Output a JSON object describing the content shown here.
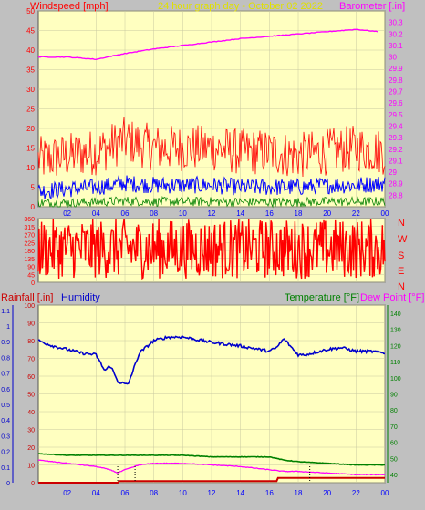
{
  "header": {
    "left_label": "Windspeed [mph]",
    "center_label": "24 hour graph day - October 02 2022",
    "right_label": "Barometer [.in]"
  },
  "colors": {
    "background": "#c0c0c0",
    "plot_bg": "#ffffc0",
    "wind_gust": "#ff0000",
    "wind_avg": "#0000ff",
    "wind_low": "#008000",
    "barometer": "#ff00ff",
    "direction": "#ff0000",
    "humidity": "#0000cc",
    "temperature": "#008000",
    "dewpoint": "#ff00ff",
    "rainfall": "#cc0000",
    "left_label": "#ff0000",
    "center_label": "#e0e000"
  },
  "direction_labels": [
    "N",
    "W",
    "S",
    "E",
    "N"
  ],
  "bottom_header": {
    "rain_label": "Rainfall [.in]",
    "humidity_label": "Humidity",
    "temp_label": "Temperature [°F]",
    "dew_label": "Dew Point [°F]"
  },
  "chart_data": [
    {
      "type": "line",
      "name": "wind-barometer",
      "x_ticks": [
        "02",
        "04",
        "06",
        "08",
        "10",
        "12",
        "14",
        "16",
        "18",
        "20",
        "22",
        "00"
      ],
      "left_axis": {
        "label": "Windspeed [mph]",
        "ylim": [
          0,
          50
        ],
        "ticks": [
          0,
          5,
          10,
          15,
          20,
          25,
          30,
          35,
          40,
          45,
          50
        ]
      },
      "right_axis": {
        "label": "Barometer [.in]",
        "ylim": [
          28.7,
          30.4
        ],
        "ticks": [
          "28.8",
          "28.9",
          "29",
          "29.1",
          "29.2",
          "29.3",
          "29.4",
          "29.5",
          "29.6",
          "29.7",
          "29.8",
          "29.9",
          "30",
          "30.1",
          "30.2",
          "30.3"
        ]
      },
      "series": [
        {
          "name": "Barometer [.in]",
          "hours": [
            0,
            2,
            4,
            6,
            8,
            10,
            12,
            14,
            16,
            18,
            20,
            22,
            23.5
          ],
          "values": [
            30.0,
            30.0,
            29.98,
            30.03,
            30.07,
            30.1,
            30.13,
            30.16,
            30.18,
            30.2,
            30.22,
            30.24,
            30.22
          ]
        },
        {
          "hours": [
            0,
            2,
            4,
            6,
            8,
            10,
            12,
            14,
            16,
            18,
            20,
            22,
            24
          ],
          "values": [
            12,
            13,
            14,
            17,
            15,
            15,
            15,
            14,
            14,
            13,
            14,
            15,
            14
          ]
        },
        {
          "hours": [
            0,
            2,
            4,
            6,
            8,
            10,
            12,
            14,
            16,
            18,
            20,
            22,
            24
          ],
          "values": [
            4,
            4.5,
            5,
            6,
            5.5,
            5.5,
            5.5,
            5,
            5,
            5,
            5.5,
            5.5,
            6
          ]
        },
        {
          "hours": [
            0,
            2,
            4,
            6,
            8,
            10,
            12,
            14,
            16,
            18,
            20,
            22,
            24
          ],
          "values": [
            1,
            1,
            1.2,
            1.5,
            1.3,
            1.3,
            1.3,
            1.2,
            1.2,
            1.2,
            1.3,
            1.3,
            1.4
          ]
        }
      ]
    },
    {
      "type": "bar",
      "name": "wind-direction",
      "left_axis": {
        "ylim": [
          0,
          360
        ],
        "ticks": [
          0,
          45,
          90,
          135,
          180,
          225,
          270,
          315,
          360
        ]
      },
      "right_labels": [
        "N",
        "W",
        "S",
        "E",
        "N"
      ],
      "series": [
        {
          "hours": [
            0,
            3,
            6,
            9,
            12,
            15,
            18,
            21,
            24
          ],
          "values": [
            160,
            180,
            200,
            170,
            190,
            180,
            175,
            185,
            170
          ]
        }
      ]
    },
    {
      "type": "line",
      "name": "humidity-temperature-rain",
      "x_ticks": [
        "02",
        "04",
        "06",
        "08",
        "10",
        "12",
        "14",
        "16",
        "18",
        "20",
        "22",
        "00"
      ],
      "left_axis": {
        "label": "Rainfall [.in] / Humidity",
        "rain_ticks": [
          "0",
          "0.1",
          "0.2",
          "0.3",
          "0.4",
          "0.5",
          "0.6",
          "0.7",
          "0.8",
          "0.9",
          "1",
          "1.1"
        ],
        "humidity_ticks": [
          0,
          10,
          20,
          30,
          40,
          50,
          60,
          70,
          80,
          90,
          100
        ],
        "humidity_ylim": [
          0,
          100
        ]
      },
      "right_axis": {
        "label": "Temperature [°F] / Dew Point [°F]",
        "ylim": [
          35,
          145
        ],
        "ticks": [
          40,
          50,
          60,
          70,
          80,
          90,
          100,
          110,
          120,
          130,
          140
        ]
      },
      "series": [
        {
          "name": "Humidity",
          "hours": [
            0,
            1,
            2,
            3,
            4,
            4.6,
            5,
            5.5,
            6.2,
            7,
            8,
            9,
            10,
            12,
            14,
            16,
            16.5,
            17,
            18,
            18.5,
            19,
            20,
            21,
            22,
            23,
            24
          ],
          "values": [
            80,
            77,
            75,
            73,
            72,
            63,
            66,
            57,
            55,
            73,
            80,
            82,
            82,
            79,
            77,
            74,
            76,
            81,
            72,
            72,
            73,
            75,
            76,
            74,
            74,
            73
          ]
        },
        {
          "name": "Temperature [°F]",
          "hours": [
            0,
            2,
            4,
            6,
            8,
            10,
            12,
            14,
            16,
            17,
            18,
            20,
            22,
            24
          ],
          "values": [
            53,
            52,
            52,
            52,
            52,
            52,
            51,
            51,
            51,
            49,
            48,
            47,
            46,
            46
          ]
        },
        {
          "name": "Dew Point [°F]",
          "hours": [
            0,
            1,
            2,
            3,
            4,
            5,
            5.5,
            6,
            7,
            8,
            9,
            10,
            12,
            14,
            16,
            17,
            18,
            20,
            22,
            24
          ],
          "values": [
            49,
            48,
            47,
            46,
            45,
            43,
            41,
            43,
            46,
            47,
            47,
            47,
            46,
            45,
            43,
            42,
            42,
            41,
            40,
            40
          ]
        },
        {
          "name": "Rainfall [.in]",
          "hours": [
            0,
            5.5,
            5.6,
            16.5,
            16.6,
            24
          ],
          "values": [
            0,
            0,
            0.01,
            0.01,
            0.03,
            0.03
          ]
        }
      ],
      "markers_hours": [
        5.5,
        6.7,
        18.8
      ]
    }
  ]
}
